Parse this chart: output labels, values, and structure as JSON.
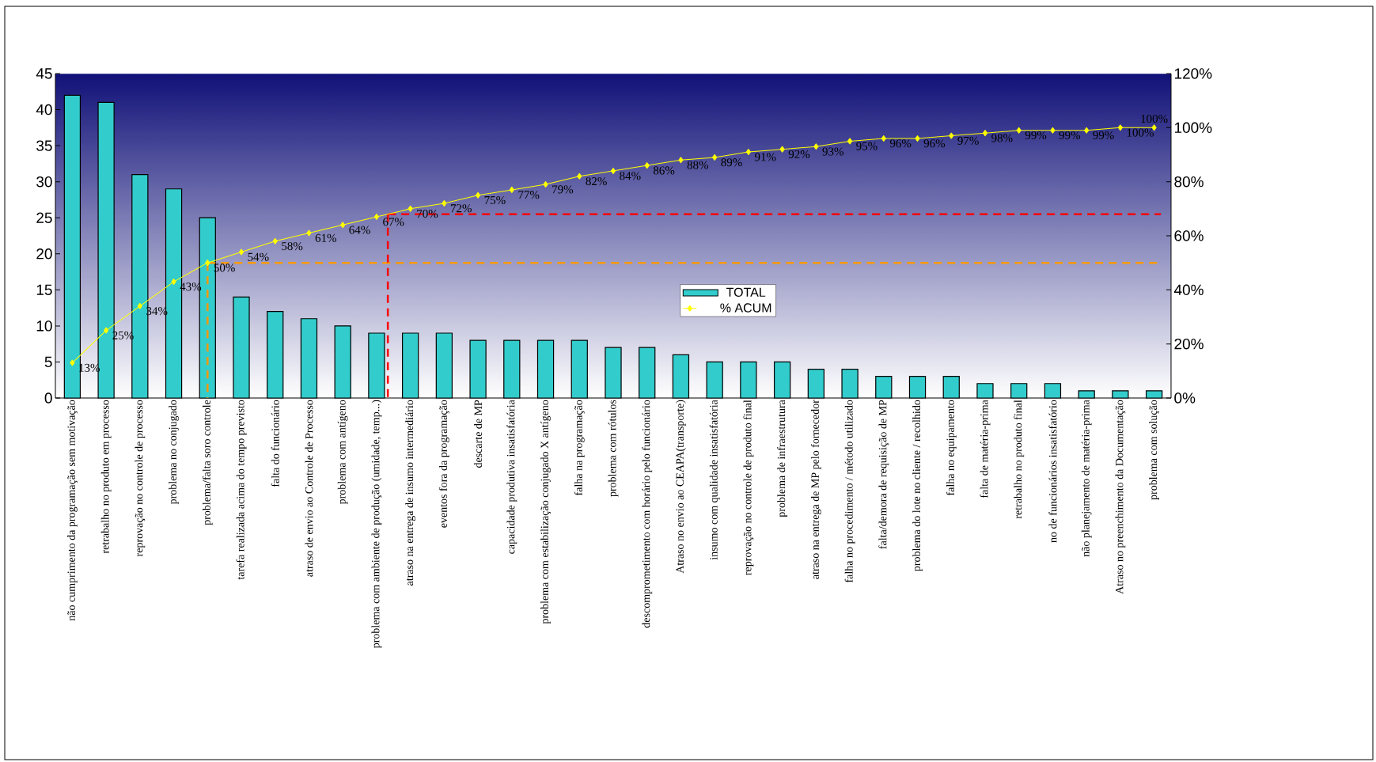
{
  "chart_data": {
    "type": "bar",
    "categories": [
      "não cumprimento da programação sem motivação",
      "retrabalho no produto em processo",
      "reprovação no controle de processo",
      "problema no conjugado",
      "problema/falta soro controle",
      "tarefa realizada acima do tempo previsto",
      "falta do funcionário",
      "atraso de envio ao Controle de Processo",
      "problema com antígeno",
      "problema com ambiente de produção (umidade, temp...)",
      "atraso na entrega de insumo intermediário",
      "eventos fora da programação",
      "descarte de MP",
      "capacidade produtiva insatisfatória",
      "problema com estabilização conjugado X antígeno",
      "falha na programação",
      "problema com rótulos",
      "descomprometimento com horário pelo funcionário",
      "Atraso no envio ao CEAPA(transporte)",
      "insumo com qualidade insatisfatória",
      "reprovação no controle de produto final",
      "problema de infraestrutura",
      "atraso na entrega de MP pelo fornecedor",
      "falha no procedimento / método utilizado",
      "falta/demora de requisição de MP",
      "problema do lote no cliente / recolhido",
      "falha no equipamento",
      "falta de matéria-prima",
      "retrabalho no produto final",
      "no de funcionários insatisfatório",
      "não planejamento de matéria-prima",
      "Atraso no preenchimento da Documentação",
      "problema com solução"
    ],
    "series": [
      {
        "name": "TOTAL",
        "color": "#33cccc",
        "values": [
          42,
          41,
          31,
          29,
          25,
          14,
          12,
          11,
          10,
          9,
          9,
          9,
          8,
          8,
          8,
          8,
          7,
          7,
          6,
          5,
          5,
          5,
          4,
          4,
          3,
          3,
          3,
          2,
          2,
          2,
          1,
          1,
          1
        ]
      },
      {
        "name": "% ACUM",
        "type": "line",
        "axis": "y2",
        "color": "#ffff00",
        "marker": "diamond",
        "values": [
          13,
          25,
          34,
          43,
          50,
          54,
          58,
          61,
          64,
          67,
          70,
          72,
          75,
          77,
          79,
          82,
          84,
          86,
          88,
          89,
          91,
          92,
          93,
          95,
          96,
          96,
          97,
          98,
          99,
          99,
          99,
          100,
          100
        ],
        "value_labels": [
          "13%",
          "25%",
          "34%",
          "43%",
          "50%",
          "54%",
          "58%",
          "61%",
          "64%",
          "67%",
          "70%",
          "72%",
          "75%",
          "77%",
          "79%",
          "82%",
          "84%",
          "86%",
          "88%",
          "89%",
          "91%",
          "92%",
          "93%",
          "95%",
          "96%",
          "96%",
          "97%",
          "98%",
          "99%",
          "99%",
          "99%",
          "100%",
          "100%"
        ]
      }
    ],
    "ylim": [
      0,
      45
    ],
    "yticks": [
      0,
      5,
      10,
      15,
      20,
      25,
      30,
      35,
      40,
      45
    ],
    "y2lim": [
      0,
      120
    ],
    "y2ticks": [
      {
        "value": 0,
        "label": "0%"
      },
      {
        "value": 20,
        "label": "20%"
      },
      {
        "value": 40,
        "label": "40%"
      },
      {
        "value": 60,
        "label": "60%"
      },
      {
        "value": 80,
        "label": "80%"
      },
      {
        "value": 100,
        "label": "100%"
      },
      {
        "value": 120,
        "label": "120%"
      }
    ],
    "legend": "center",
    "ref_lines": [
      {
        "axis": "y2",
        "value": 50,
        "color": "#ff9900",
        "line_style": "dashed"
      },
      {
        "axis": "y2",
        "value": 68,
        "color": "#ff0000",
        "line_style": "dashed"
      }
    ]
  }
}
